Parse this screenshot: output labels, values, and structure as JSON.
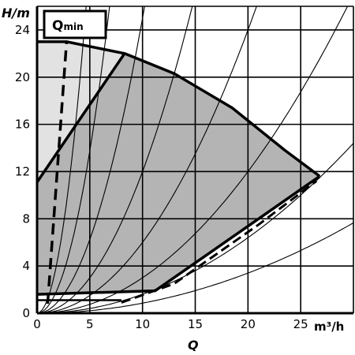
{
  "chart_data": {
    "type": "area",
    "x": {
      "label": "Q",
      "unit": "m³/h",
      "ticks": [
        0,
        5,
        10,
        15,
        20,
        25
      ],
      "range": [
        0,
        30
      ]
    },
    "y": {
      "label": "H/m",
      "ticks": [
        0,
        4,
        8,
        12,
        16,
        20,
        24
      ],
      "range": [
        0,
        26
      ]
    },
    "grid": true,
    "annotation": {
      "main": "Q",
      "sub": "min"
    },
    "qmin_line": [
      [
        1.0,
        0.8
      ],
      [
        2.8,
        23.0
      ]
    ],
    "max_curve": [
      [
        0,
        23
      ],
      [
        2.8,
        23
      ],
      [
        8.3,
        22.0
      ],
      [
        13,
        20.3
      ],
      [
        18.5,
        17.4
      ],
      [
        23.5,
        13.8
      ],
      [
        26.8,
        11.6
      ]
    ],
    "min_speed_curve": [
      [
        0,
        11.1
      ],
      [
        8.3,
        22.0
      ]
    ],
    "lower_boundary": [
      [
        0,
        1.6
      ],
      [
        11.2,
        1.9
      ],
      [
        26.8,
        11.6
      ]
    ],
    "dashed_boundary": [
      [
        8,
        0.9
      ],
      [
        13,
        2.5
      ],
      [
        21,
        7.5
      ],
      [
        26.5,
        11.2
      ]
    ],
    "min_line": [
      [
        0,
        1.1
      ],
      [
        8,
        1.1
      ]
    ],
    "system_curve_k": [
      0.0085,
      0.016,
      0.03,
      0.06,
      0.12,
      0.25,
      0.55,
      1.2
    ]
  }
}
